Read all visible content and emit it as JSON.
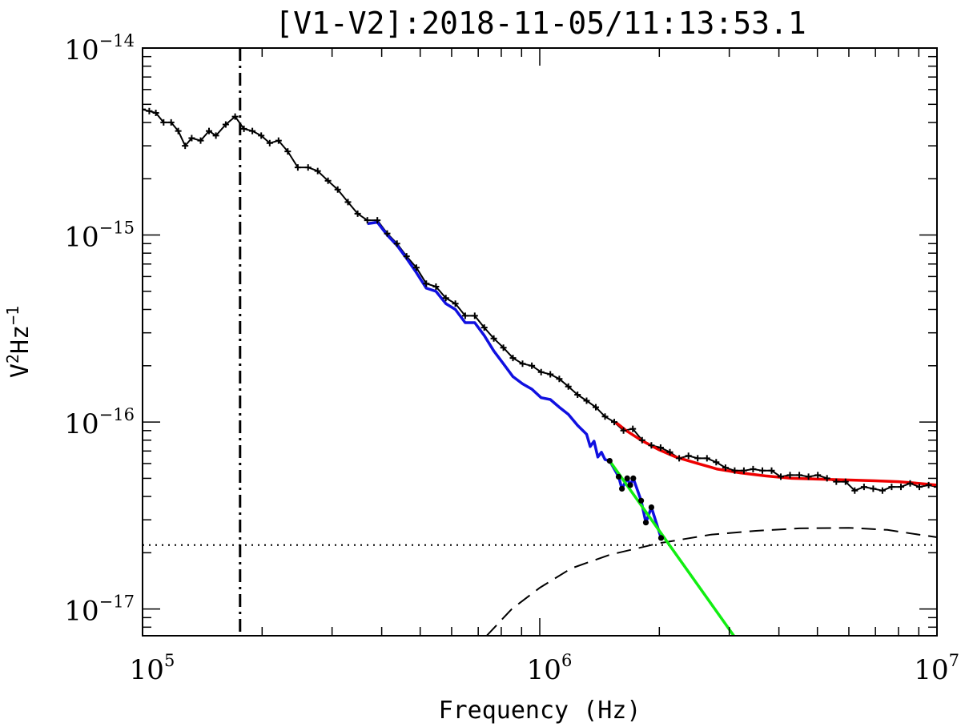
{
  "chart_data": {
    "type": "line",
    "title": "[V1-V2]:2018-11-05/11:13:53.1",
    "xlabel": "Frequency (Hz)",
    "ylabel": {
      "base": "V",
      "sup1": "2",
      "mid": "Hz",
      "sup2": "−1"
    },
    "x_scale": "log",
    "y_scale": "log",
    "xlim": [
      100000,
      10000000
    ],
    "ylim": [
      7.2e-18,
      1e-14
    ],
    "x_ticks": [
      {
        "value": 100000,
        "base": "10",
        "exp": "5"
      },
      {
        "value": 1000000,
        "base": "10",
        "exp": "6"
      },
      {
        "value": 10000000,
        "base": "10",
        "exp": "7"
      }
    ],
    "y_ticks": [
      {
        "value": 1e-17,
        "base": "10",
        "exp": "−17"
      },
      {
        "value": 1e-16,
        "base": "10",
        "exp": "−16"
      },
      {
        "value": 1e-15,
        "base": "10",
        "exp": "−15"
      },
      {
        "value": 1e-14,
        "base": "10",
        "exp": "−14"
      }
    ],
    "grid": false,
    "colors": {
      "spectrum": "#000000",
      "fit_blue": "#1010e0",
      "fit_red": "#ee0000",
      "fit_green": "#11ee11",
      "axis": "#000000"
    },
    "series": [
      {
        "key": "spectrum",
        "style": "black line with plus markers",
        "points": [
          [
            100000,
            4.7e-15
          ],
          [
            104000,
            4.6e-15
          ],
          [
            108000,
            4.5e-15
          ],
          [
            113000,
            4e-15
          ],
          [
            118000,
            4e-15
          ],
          [
            123000,
            3.6e-15
          ],
          [
            128000,
            3e-15
          ],
          [
            133000,
            3.3e-15
          ],
          [
            140000,
            3.2e-15
          ],
          [
            147000,
            3.6e-15
          ],
          [
            153000,
            3.4e-15
          ],
          [
            162000,
            3.9e-15
          ],
          [
            171000,
            4.3e-15
          ],
          [
            180000,
            3.7e-15
          ],
          [
            189000,
            3.6e-15
          ],
          [
            199000,
            3.4e-15
          ],
          [
            209000,
            3.1e-15
          ],
          [
            220000,
            3.2e-15
          ],
          [
            232000,
            2.8e-15
          ],
          [
            246000,
            2.3e-15
          ],
          [
            261000,
            2.3e-15
          ],
          [
            276000,
            2.2e-15
          ],
          [
            293000,
            1.95e-15
          ],
          [
            310000,
            1.75e-15
          ],
          [
            329000,
            1.5e-15
          ],
          [
            348000,
            1.3e-15
          ],
          [
            368000,
            1.2e-15
          ],
          [
            390000,
            1.2e-15
          ],
          [
            413000,
            1.02e-15
          ],
          [
            437000,
            9e-16
          ],
          [
            462000,
            7.7e-16
          ],
          [
            489000,
            6.7e-16
          ],
          [
            518000,
            5.5e-16
          ],
          [
            548000,
            5.3e-16
          ],
          [
            580000,
            4.6e-16
          ],
          [
            613000,
            4.3e-16
          ],
          [
            649000,
            3.7e-16
          ],
          [
            686000,
            3.7e-16
          ],
          [
            725000,
            3.2e-16
          ],
          [
            766000,
            2.8e-16
          ],
          [
            810000,
            2.5e-16
          ],
          [
            856000,
            2.2e-16
          ],
          [
            905000,
            2.05e-16
          ],
          [
            955000,
            2e-16
          ],
          [
            1008000,
            1.85e-16
          ],
          [
            1063000,
            1.8e-16
          ],
          [
            1120000,
            1.7e-16
          ],
          [
            1180000,
            1.55e-16
          ],
          [
            1245000,
            1.4e-16
          ],
          [
            1312000,
            1.3e-16
          ],
          [
            1384000,
            1.2e-16
          ],
          [
            1460000,
            1.07e-16
          ],
          [
            1540000,
            1e-16
          ],
          [
            1625000,
            9e-17
          ],
          [
            1715000,
            9.2e-17
          ],
          [
            1810000,
            8e-17
          ],
          [
            1910000,
            7.5e-17
          ],
          [
            2015000,
            7.3e-17
          ],
          [
            2126000,
            6.9e-17
          ],
          [
            2244000,
            6.4e-17
          ],
          [
            2368000,
            6.6e-17
          ],
          [
            2498000,
            6.4e-17
          ],
          [
            2636000,
            6.4e-17
          ],
          [
            2781000,
            6.1e-17
          ],
          [
            2934000,
            5.7e-17
          ],
          [
            3095000,
            5.5e-17
          ],
          [
            3265000,
            5.5e-17
          ],
          [
            3445000,
            5.6e-17
          ],
          [
            3634000,
            5.5e-17
          ],
          [
            3834000,
            5.5e-17
          ],
          [
            4045000,
            5.1e-17
          ],
          [
            4267000,
            5.2e-17
          ],
          [
            4502000,
            5.2e-17
          ],
          [
            4750000,
            5.1e-17
          ],
          [
            5011000,
            5.2e-17
          ],
          [
            5287000,
            5e-17
          ],
          [
            5578000,
            4.8e-17
          ],
          [
            5885000,
            4.8e-17
          ],
          [
            6208000,
            4.3e-17
          ],
          [
            6550000,
            4.5e-17
          ],
          [
            6910000,
            4.4e-17
          ],
          [
            7290000,
            4.3e-17
          ],
          [
            7690000,
            4.5e-17
          ],
          [
            8115000,
            4.5e-17
          ],
          [
            8560000,
            4.7e-17
          ],
          [
            9030000,
            4.5e-17
          ],
          [
            9530000,
            4.6e-17
          ],
          [
            10000000,
            4.5e-17
          ]
        ]
      },
      {
        "key": "fit_blue",
        "style": "blue line",
        "points": [
          [
            368000,
            1.15e-15
          ],
          [
            390000,
            1.17e-15
          ],
          [
            413000,
            1e-15
          ],
          [
            437000,
            8.8e-16
          ],
          [
            462000,
            7.5e-16
          ],
          [
            489000,
            6.3e-16
          ],
          [
            518000,
            5.2e-16
          ],
          [
            548000,
            5e-16
          ],
          [
            580000,
            4.3e-16
          ],
          [
            613000,
            4e-16
          ],
          [
            649000,
            3.4e-16
          ],
          [
            686000,
            3.4e-16
          ],
          [
            725000,
            2.9e-16
          ],
          [
            766000,
            2.4e-16
          ],
          [
            810000,
            2.05e-16
          ],
          [
            856000,
            1.75e-16
          ],
          [
            905000,
            1.6e-16
          ],
          [
            955000,
            1.5e-16
          ],
          [
            1008000,
            1.35e-16
          ],
          [
            1063000,
            1.32e-16
          ],
          [
            1120000,
            1.2e-16
          ],
          [
            1180000,
            1.1e-16
          ],
          [
            1245000,
            9.6e-17
          ],
          [
            1312000,
            8.6e-17
          ],
          [
            1340000,
            7.4e-17
          ],
          [
            1370000,
            7.9e-17
          ],
          [
            1400000,
            6.5e-17
          ],
          [
            1430000,
            6.9e-17
          ],
          [
            1460000,
            6.3e-17
          ],
          [
            1500000,
            6.2e-17
          ],
          [
            1580000,
            5.1e-17
          ],
          [
            1610000,
            4.4e-17
          ],
          [
            1660000,
            5e-17
          ],
          [
            1690000,
            4.6e-17
          ],
          [
            1720000,
            5e-17
          ],
          [
            1800000,
            3.8e-17
          ],
          [
            1850000,
            2.9e-17
          ],
          [
            1910000,
            3.5e-17
          ],
          [
            2020000,
            2.4e-17
          ]
        ]
      },
      {
        "key": "fit_blue_dots",
        "style": "black filled dots",
        "points": [
          [
            1500000,
            6.2e-17
          ],
          [
            1580000,
            5.1e-17
          ],
          [
            1610000,
            4.4e-17
          ],
          [
            1660000,
            5e-17
          ],
          [
            1690000,
            4.6e-17
          ],
          [
            1720000,
            5e-17
          ],
          [
            1800000,
            3.8e-17
          ],
          [
            1850000,
            2.9e-17
          ],
          [
            1910000,
            3.5e-17
          ],
          [
            2020000,
            2.4e-17
          ]
        ]
      },
      {
        "key": "fit_red",
        "style": "red line",
        "points": [
          [
            1550000,
            1e-16
          ],
          [
            1650000,
            9e-17
          ],
          [
            1800000,
            8e-17
          ],
          [
            2000000,
            7.1e-17
          ],
          [
            2200000,
            6.5e-17
          ],
          [
            2500000,
            6e-17
          ],
          [
            2800000,
            5.6e-17
          ],
          [
            3200000,
            5.35e-17
          ],
          [
            3700000,
            5.15e-17
          ],
          [
            4300000,
            5e-17
          ],
          [
            5000000,
            4.95e-17
          ],
          [
            6000000,
            4.9e-17
          ],
          [
            7000000,
            4.85e-17
          ],
          [
            8000000,
            4.8e-17
          ],
          [
            9000000,
            4.7e-17
          ],
          [
            10000000,
            4.6e-17
          ]
        ]
      },
      {
        "key": "fit_green",
        "style": "green line",
        "points": [
          [
            1500000,
            6.2e-17
          ],
          [
            3080000,
            7.2e-18
          ]
        ]
      },
      {
        "key": "dashed_curve",
        "style": "black dashed line",
        "points": [
          [
            735000,
            7.2e-18
          ],
          [
            850000,
            1e-17
          ],
          [
            1000000,
            1.3e-17
          ],
          [
            1200000,
            1.65e-17
          ],
          [
            1500000,
            1.95e-17
          ],
          [
            2000000,
            2.25e-17
          ],
          [
            2700000,
            2.5e-17
          ],
          [
            3500000,
            2.62e-17
          ],
          [
            4500000,
            2.7e-17
          ],
          [
            6000000,
            2.72e-17
          ],
          [
            7500000,
            2.65e-17
          ],
          [
            9000000,
            2.5e-17
          ],
          [
            10000000,
            2.42e-17
          ]
        ]
      }
    ],
    "reference_lines": [
      {
        "key": "vertical_dashdot",
        "orientation": "vertical",
        "value": 176000,
        "style": "dash-dot"
      },
      {
        "key": "horizontal_dotted",
        "orientation": "horizontal",
        "value": 2.2e-17,
        "style": "dotted"
      }
    ]
  }
}
